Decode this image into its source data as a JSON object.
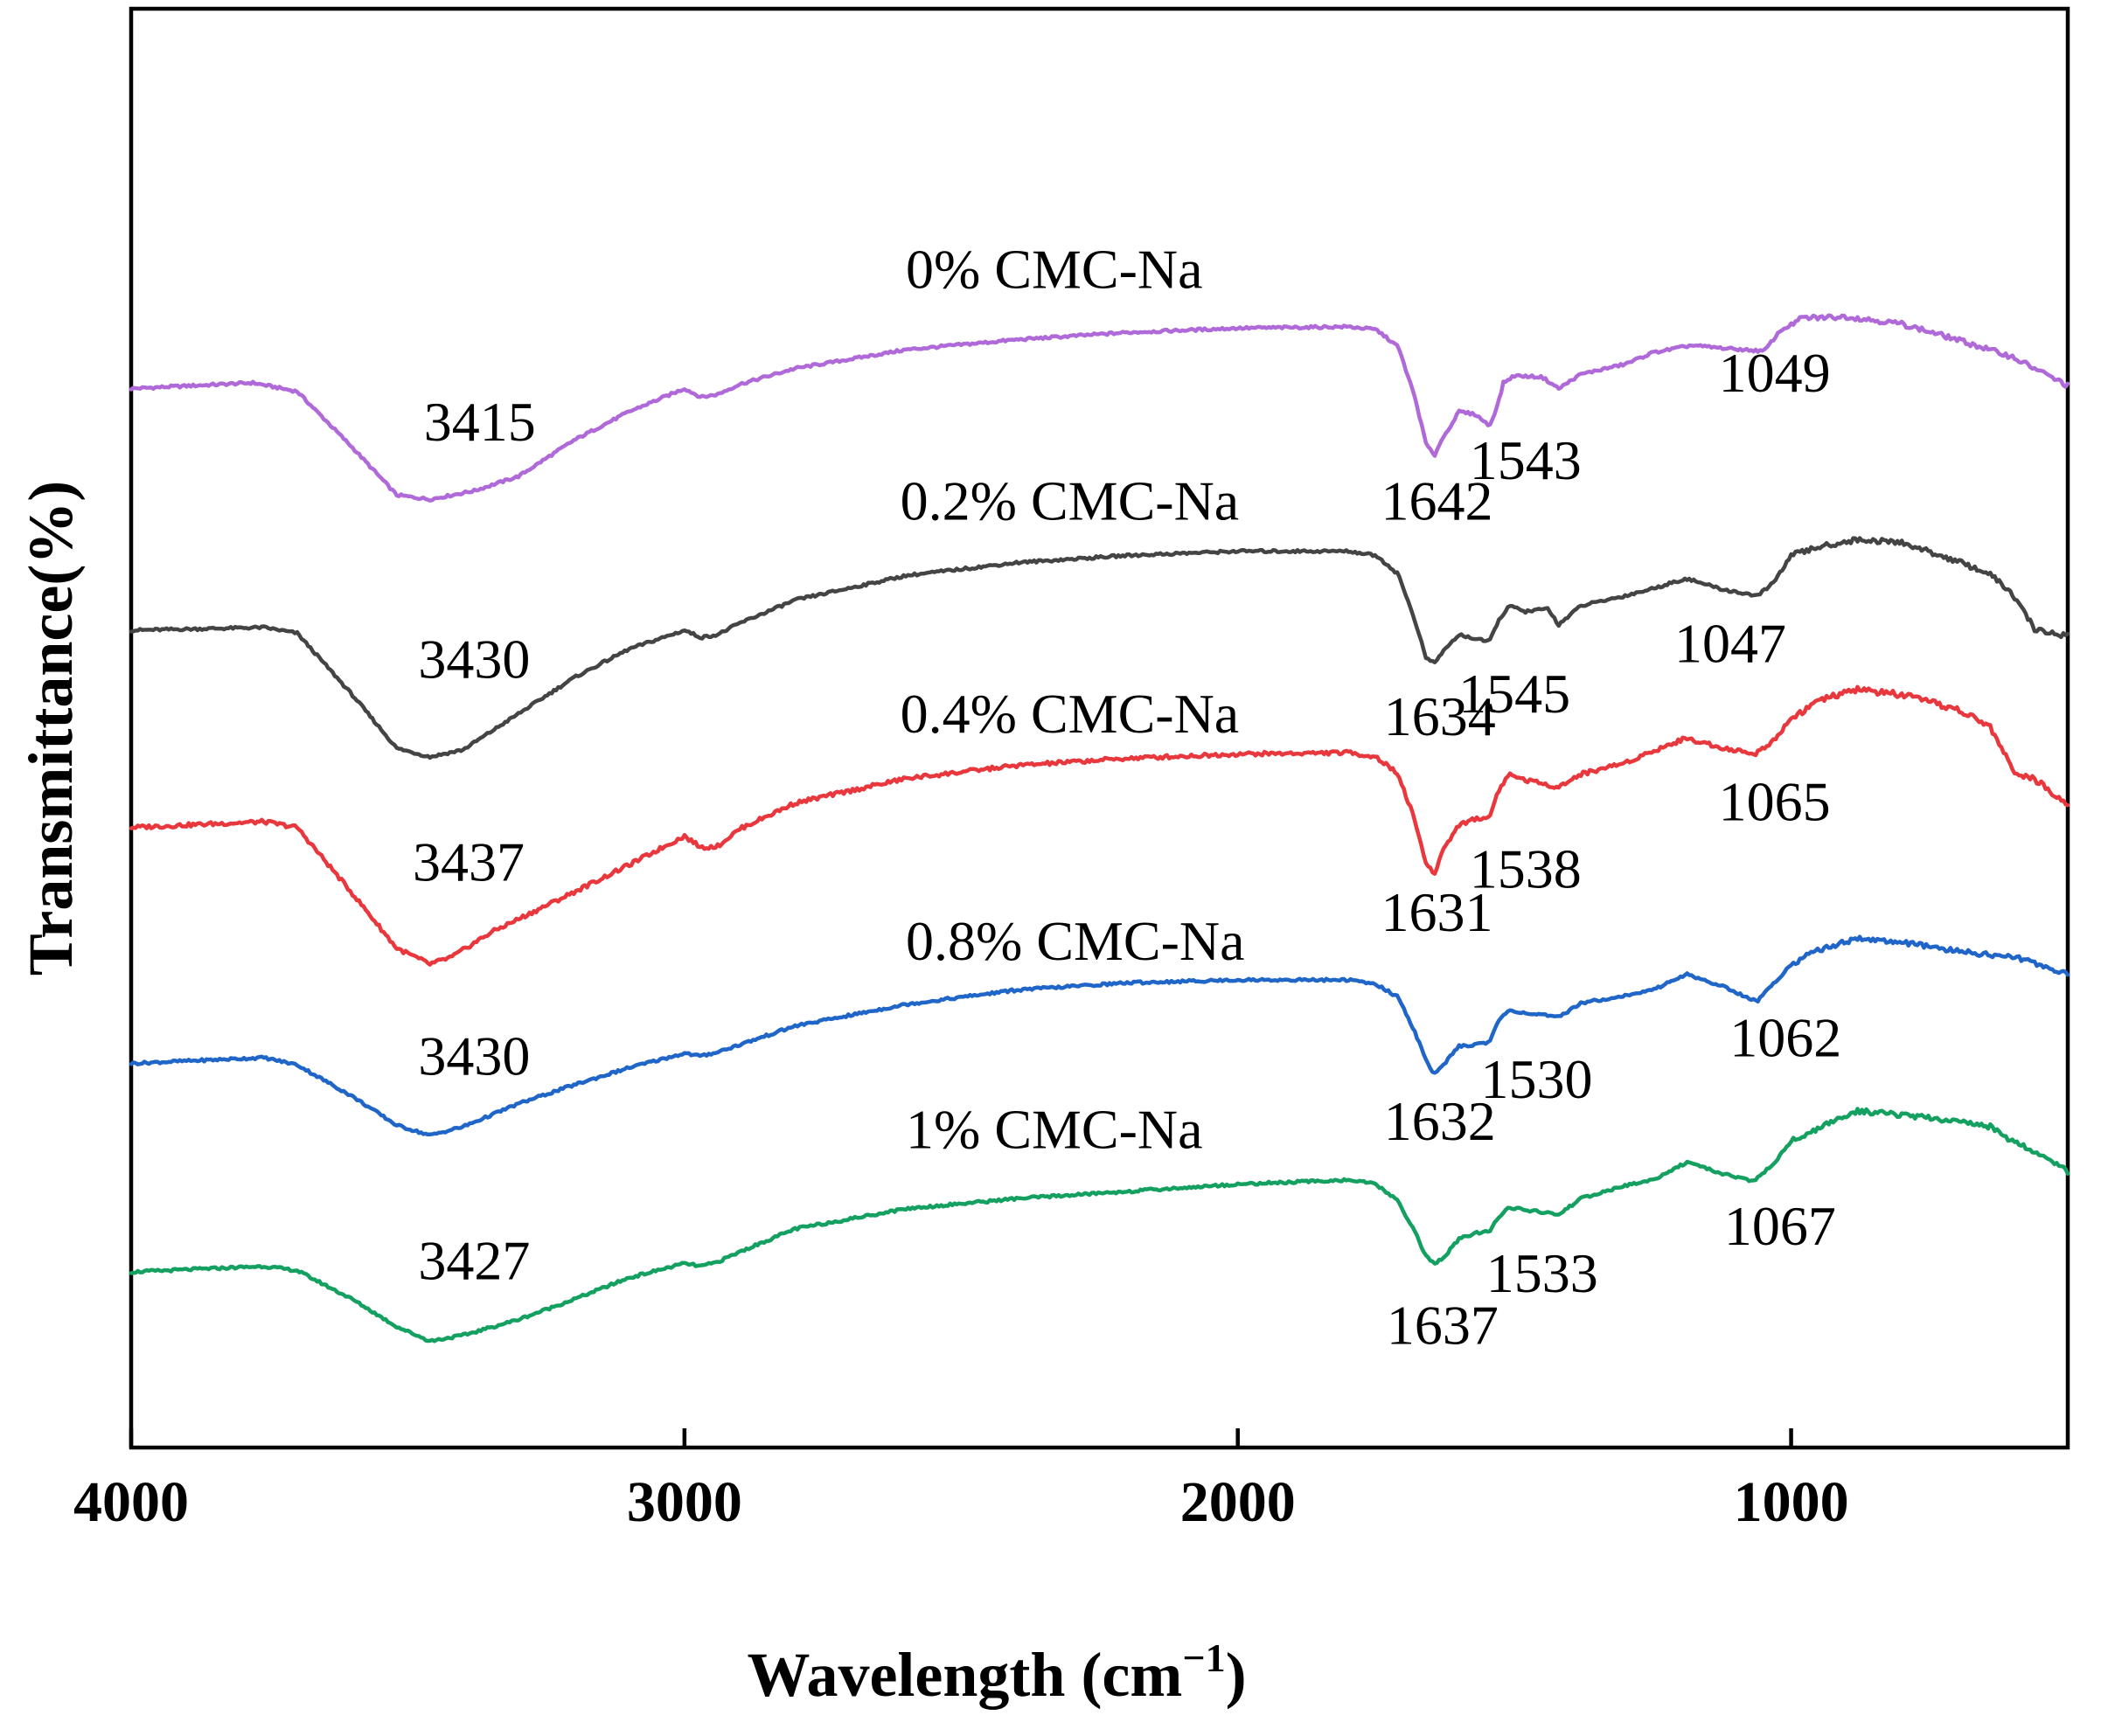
{
  "chart_data": {
    "type": "line",
    "title": "",
    "xlabel": "Wavelength (cm",
    "xlabel_sup": "−1",
    "xlabel_close": ")",
    "ylabel": "Transmittance(%)",
    "xlim": [
      4000,
      500
    ],
    "ylim": [
      0,
      100
    ],
    "xticks": [
      4000,
      3000,
      2000,
      1000
    ],
    "xtick_labels": [
      "4000",
      "3000",
      "2000",
      "1000"
    ],
    "grid": false,
    "series": [
      {
        "name": "0% CMC-Na",
        "color": "#b069d8",
        "label_at": [
          2600,
          80.6
        ],
        "points": [
          [
            4000,
            73.6
          ],
          [
            3780,
            74.0
          ],
          [
            3700,
            73.4
          ],
          [
            3600,
            69.5
          ],
          [
            3520,
            66.2
          ],
          [
            3460,
            65.9
          ],
          [
            3380,
            66.5
          ],
          [
            3300,
            67.5
          ],
          [
            3200,
            70.0
          ],
          [
            3100,
            72.0
          ],
          [
            3000,
            73.6
          ],
          [
            2970,
            73.0
          ],
          [
            2940,
            73.2
          ],
          [
            2900,
            73.9
          ],
          [
            2800,
            75.0
          ],
          [
            2600,
            76.3
          ],
          [
            2400,
            77.0
          ],
          [
            2200,
            77.5
          ],
          [
            2000,
            77.8
          ],
          [
            1800,
            77.9
          ],
          [
            1750,
            77.7
          ],
          [
            1710,
            76.5
          ],
          [
            1680,
            73.0
          ],
          [
            1660,
            69.8
          ],
          [
            1645,
            68.9
          ],
          [
            1635,
            69.8
          ],
          [
            1600,
            72.0
          ],
          [
            1570,
            71.8
          ],
          [
            1545,
            71.0
          ],
          [
            1530,
            72.5
          ],
          [
            1520,
            74.0
          ],
          [
            1500,
            74.5
          ],
          [
            1450,
            74.4
          ],
          [
            1420,
            73.6
          ],
          [
            1380,
            74.6
          ],
          [
            1300,
            75.3
          ],
          [
            1250,
            76.1
          ],
          [
            1180,
            76.6
          ],
          [
            1120,
            76.4
          ],
          [
            1049,
            76.2
          ],
          [
            1020,
            77.6
          ],
          [
            980,
            78.5
          ],
          [
            900,
            78.6
          ],
          [
            800,
            78.1
          ],
          [
            700,
            77.0
          ],
          [
            600,
            75.8
          ],
          [
            540,
            74.6
          ],
          [
            500,
            73.8
          ]
        ],
        "peaks": [
          {
            "label": "3415",
            "at": [
              3370,
              70.0
            ]
          },
          {
            "label": "1642",
            "at": [
              1640,
              64.5
            ]
          },
          {
            "label": "1543",
            "at": [
              1480,
              67.3
            ]
          },
          {
            "label": "1049",
            "at": [
              1030,
              73.4
            ]
          }
        ]
      },
      {
        "name": "0.2% CMC-Na",
        "color": "#444444",
        "label_at": [
          2610,
          64.5
        ],
        "points": [
          [
            4000,
            56.8
          ],
          [
            3760,
            57.0
          ],
          [
            3700,
            56.6
          ],
          [
            3600,
            52.3
          ],
          [
            3520,
            48.6
          ],
          [
            3460,
            48.0
          ],
          [
            3400,
            48.5
          ],
          [
            3300,
            51.0
          ],
          [
            3200,
            53.5
          ],
          [
            3100,
            55.5
          ],
          [
            3000,
            56.8
          ],
          [
            2970,
            56.3
          ],
          [
            2940,
            56.5
          ],
          [
            2900,
            57.3
          ],
          [
            2800,
            58.9
          ],
          [
            2600,
            60.6
          ],
          [
            2400,
            61.5
          ],
          [
            2200,
            62.0
          ],
          [
            2000,
            62.3
          ],
          [
            1800,
            62.3
          ],
          [
            1750,
            62.0
          ],
          [
            1710,
            60.7
          ],
          [
            1680,
            57.5
          ],
          [
            1660,
            54.9
          ],
          [
            1645,
            54.5
          ],
          [
            1630,
            55.3
          ],
          [
            1600,
            56.5
          ],
          [
            1570,
            56.2
          ],
          [
            1545,
            56.0
          ],
          [
            1530,
            57.4
          ],
          [
            1510,
            58.5
          ],
          [
            1480,
            58.1
          ],
          [
            1440,
            58.3
          ],
          [
            1420,
            57.2
          ],
          [
            1380,
            58.5
          ],
          [
            1300,
            59.2
          ],
          [
            1250,
            59.7
          ],
          [
            1190,
            60.4
          ],
          [
            1120,
            59.6
          ],
          [
            1060,
            59.2
          ],
          [
            1030,
            60.2
          ],
          [
            1000,
            62.0
          ],
          [
            950,
            62.6
          ],
          [
            880,
            63.1
          ],
          [
            800,
            62.9
          ],
          [
            700,
            61.6
          ],
          [
            640,
            60.7
          ],
          [
            600,
            59.3
          ],
          [
            560,
            56.9
          ],
          [
            520,
            56.5
          ],
          [
            500,
            56.5
          ]
        ],
        "peaks": [
          {
            "label": "3430",
            "at": [
              3380,
              53.5
            ]
          },
          {
            "label": "1634",
            "at": [
              1635,
              49.5
            ]
          },
          {
            "label": "1545",
            "at": [
              1500,
              51.1
            ]
          },
          {
            "label": "1047",
            "at": [
              1110,
              54.6
            ]
          }
        ]
      },
      {
        "name": "0.4% CMC-Na",
        "color": "#e8383d",
        "label_at": [
          2610,
          49.7
        ],
        "points": [
          [
            4000,
            43.1
          ],
          [
            3760,
            43.5
          ],
          [
            3700,
            43.1
          ],
          [
            3600,
            38.5
          ],
          [
            3520,
            34.7
          ],
          [
            3460,
            33.6
          ],
          [
            3420,
            34.1
          ],
          [
            3350,
            35.8
          ],
          [
            3200,
            38.6
          ],
          [
            3100,
            40.5
          ],
          [
            3000,
            42.5
          ],
          [
            2970,
            41.7
          ],
          [
            2940,
            41.8
          ],
          [
            2900,
            43.0
          ],
          [
            2800,
            44.8
          ],
          [
            2600,
            46.5
          ],
          [
            2400,
            47.4
          ],
          [
            2200,
            47.9
          ],
          [
            2000,
            48.2
          ],
          [
            1800,
            48.3
          ],
          [
            1750,
            48.0
          ],
          [
            1710,
            46.8
          ],
          [
            1680,
            43.6
          ],
          [
            1660,
            40.6
          ],
          [
            1645,
            39.8
          ],
          [
            1630,
            41.5
          ],
          [
            1600,
            43.3
          ],
          [
            1570,
            43.7
          ],
          [
            1545,
            43.8
          ],
          [
            1530,
            45.6
          ],
          [
            1510,
            46.8
          ],
          [
            1480,
            46.4
          ],
          [
            1420,
            45.9
          ],
          [
            1380,
            46.8
          ],
          [
            1300,
            47.6
          ],
          [
            1250,
            48.4
          ],
          [
            1190,
            49.3
          ],
          [
            1120,
            48.6
          ],
          [
            1065,
            48.2
          ],
          [
            1030,
            49.2
          ],
          [
            1000,
            50.7
          ],
          [
            950,
            51.9
          ],
          [
            880,
            52.7
          ],
          [
            800,
            52.3
          ],
          [
            700,
            51.3
          ],
          [
            640,
            50.1
          ],
          [
            600,
            47.1
          ],
          [
            560,
            46.4
          ],
          [
            500,
            44.8
          ]
        ],
        "peaks": [
          {
            "label": "3437",
            "at": [
              3390,
              39.4
            ]
          },
          {
            "label": "1631",
            "at": [
              1640,
              35.9
            ]
          },
          {
            "label": "1538",
            "at": [
              1480,
              38.9
            ]
          },
          {
            "label": "1065",
            "at": [
              1030,
              43.6
            ]
          }
        ]
      },
      {
        "name": "0.8% CMC-Na",
        "color": "#1f66c8",
        "label_at": [
          2600,
          33.9
        ],
        "points": [
          [
            4000,
            26.7
          ],
          [
            3760,
            27.1
          ],
          [
            3700,
            26.6
          ],
          [
            3600,
            24.4
          ],
          [
            3520,
            22.4
          ],
          [
            3460,
            21.7
          ],
          [
            3400,
            22.3
          ],
          [
            3300,
            23.9
          ],
          [
            3200,
            25.2
          ],
          [
            3100,
            26.4
          ],
          [
            3000,
            27.4
          ],
          [
            2970,
            27.2
          ],
          [
            2940,
            27.5
          ],
          [
            2900,
            28.0
          ],
          [
            2800,
            29.3
          ],
          [
            2600,
            30.8
          ],
          [
            2400,
            31.8
          ],
          [
            2200,
            32.3
          ],
          [
            2000,
            32.5
          ],
          [
            1800,
            32.5
          ],
          [
            1750,
            32.2
          ],
          [
            1710,
            31.3
          ],
          [
            1680,
            28.9
          ],
          [
            1660,
            26.9
          ],
          [
            1645,
            26.0
          ],
          [
            1630,
            26.5
          ],
          [
            1600,
            27.9
          ],
          [
            1570,
            28.0
          ],
          [
            1545,
            28.2
          ],
          [
            1530,
            29.6
          ],
          [
            1510,
            30.4
          ],
          [
            1480,
            30.2
          ],
          [
            1420,
            29.9
          ],
          [
            1380,
            30.9
          ],
          [
            1300,
            31.4
          ],
          [
            1250,
            31.8
          ],
          [
            1190,
            32.9
          ],
          [
            1120,
            32.0
          ],
          [
            1062,
            31.0
          ],
          [
            1030,
            32.3
          ],
          [
            1000,
            33.6
          ],
          [
            950,
            34.6
          ],
          [
            880,
            35.4
          ],
          [
            800,
            35.1
          ],
          [
            700,
            34.5
          ],
          [
            600,
            34.1
          ],
          [
            560,
            33.7
          ],
          [
            500,
            32.9
          ]
        ],
        "peaks": [
          {
            "label": "3430",
            "at": [
              3380,
              25.9
            ]
          },
          {
            "label": "1632",
            "at": [
              1635,
              21.4
            ]
          },
          {
            "label": "1530",
            "at": [
              1460,
              24.3
            ]
          },
          {
            "label": "1062",
            "at": [
              1010,
              27.2
            ]
          }
        ]
      },
      {
        "name": "1% CMC-Na",
        "color": "#14a060",
        "label_at": [
          2600,
          20.8
        ],
        "points": [
          [
            4000,
            12.2
          ],
          [
            3760,
            12.6
          ],
          [
            3700,
            12.3
          ],
          [
            3600,
            10.3
          ],
          [
            3520,
            8.4
          ],
          [
            3460,
            7.4
          ],
          [
            3400,
            7.8
          ],
          [
            3300,
            8.9
          ],
          [
            3200,
            10.3
          ],
          [
            3100,
            11.8
          ],
          [
            3000,
            12.8
          ],
          [
            2970,
            12.6
          ],
          [
            2940,
            12.9
          ],
          [
            2900,
            13.6
          ],
          [
            2800,
            15.2
          ],
          [
            2600,
            16.6
          ],
          [
            2400,
            17.3
          ],
          [
            2200,
            17.8
          ],
          [
            2000,
            18.3
          ],
          [
            1800,
            18.6
          ],
          [
            1750,
            18.3
          ],
          [
            1710,
            17.1
          ],
          [
            1680,
            15.0
          ],
          [
            1660,
            13.3
          ],
          [
            1645,
            12.8
          ],
          [
            1630,
            13.1
          ],
          [
            1600,
            14.5
          ],
          [
            1570,
            14.9
          ],
          [
            1545,
            15.0
          ],
          [
            1530,
            16.0
          ],
          [
            1510,
            16.7
          ],
          [
            1480,
            16.5
          ],
          [
            1420,
            16.2
          ],
          [
            1380,
            17.3
          ],
          [
            1300,
            18.2
          ],
          [
            1250,
            18.6
          ],
          [
            1190,
            19.8
          ],
          [
            1120,
            19.0
          ],
          [
            1067,
            18.5
          ],
          [
            1030,
            19.8
          ],
          [
            1000,
            21.3
          ],
          [
            950,
            22.2
          ],
          [
            880,
            23.4
          ],
          [
            800,
            23.1
          ],
          [
            700,
            22.7
          ],
          [
            640,
            22.3
          ],
          [
            600,
            21.3
          ],
          [
            560,
            20.6
          ],
          [
            500,
            19.2
          ]
        ],
        "peaks": [
          {
            "label": "3427",
            "at": [
              3380,
              11.7
            ]
          },
          {
            "label": "1637",
            "at": [
              1630,
              7.2
            ]
          },
          {
            "label": "1533",
            "at": [
              1450,
              10.8
            ]
          },
          {
            "label": "1067",
            "at": [
              1020,
              14.1
            ]
          }
        ]
      }
    ]
  }
}
